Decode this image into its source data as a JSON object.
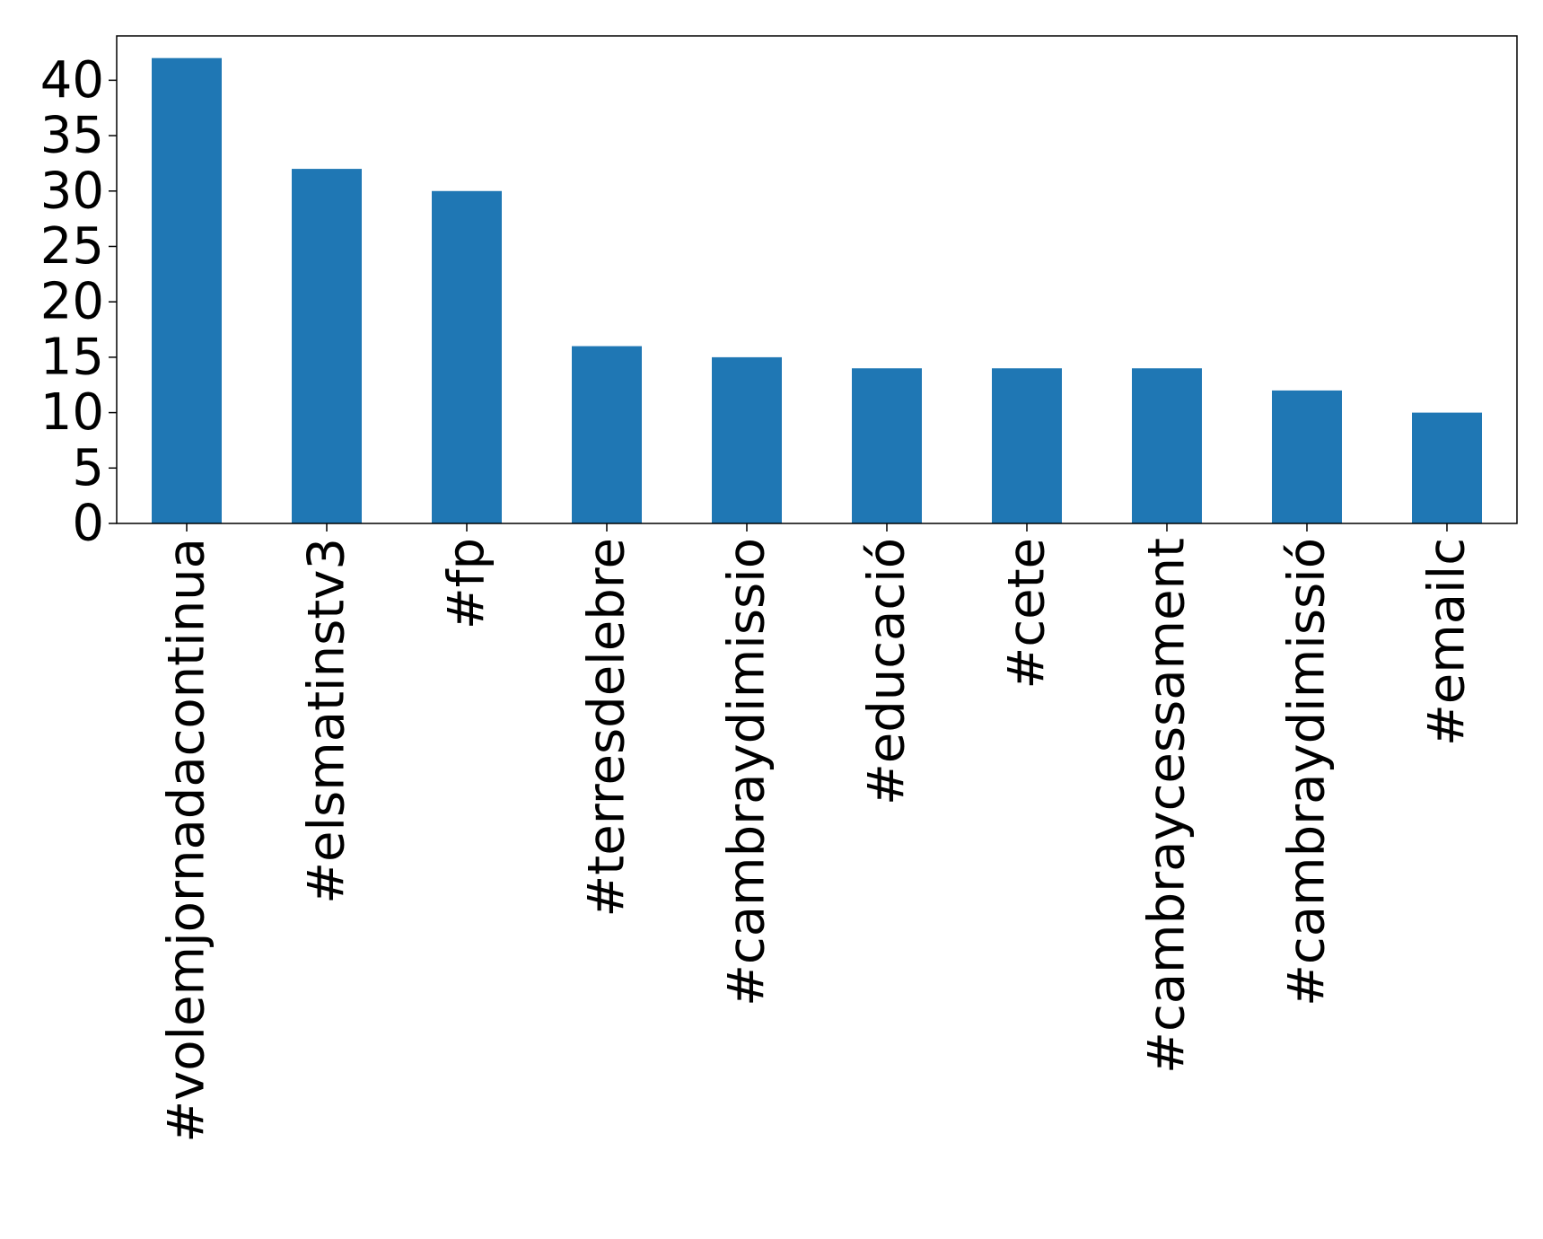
{
  "chart_data": {
    "type": "bar",
    "categories": [
      "#volemjornadacontinua",
      "#elsmatinstv3",
      "#fp",
      "#terresdelebre",
      "#cambraydimissio",
      "#educació",
      "#cete",
      "#cambraycessament",
      "#cambraydimissió",
      "#emailc"
    ],
    "values": [
      42,
      32,
      30,
      16,
      15,
      14,
      14,
      14,
      12,
      10
    ],
    "ylim": [
      0,
      44
    ],
    "yticks": [
      "0",
      "5",
      "10",
      "15",
      "20",
      "25",
      "30",
      "35",
      "40"
    ],
    "ytick_values": [
      0,
      5,
      10,
      15,
      20,
      25,
      30,
      35,
      40
    ],
    "bar_color": "#1f77b4",
    "grid": false,
    "legend": "none"
  }
}
